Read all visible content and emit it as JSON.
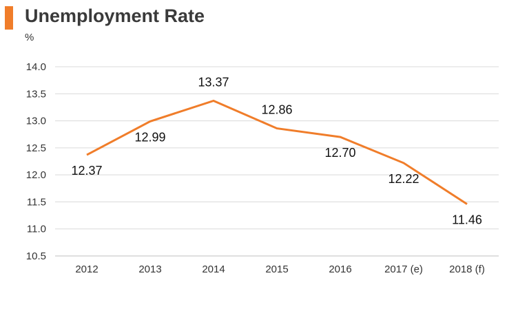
{
  "header": {
    "title": "Unemployment Rate",
    "unit": "%",
    "accent_color": "#f07d2a"
  },
  "chart_data": {
    "type": "line",
    "title": "Unemployment Rate",
    "ylabel": "%",
    "xlabel": "",
    "categories": [
      "2012",
      "2013",
      "2014",
      "2015",
      "2016",
      "2017 (e)",
      "2018 (f)"
    ],
    "series": [
      {
        "values": [
          12.37,
          12.99,
          13.37,
          12.86,
          12.7,
          12.22,
          11.46
        ],
        "labels": [
          "12.37",
          "12.99",
          "13.37",
          "12.86",
          "12.70",
          "12.22",
          "11.46"
        ],
        "color": "#f07d2a"
      }
    ],
    "ylim": [
      10.5,
      14.0
    ],
    "yticks": [
      "14.0",
      "13.5",
      "13.0",
      "12.5",
      "12.0",
      "11.5",
      "11.0",
      "10.5"
    ],
    "grid": true,
    "grid_color": "#d9d9d9",
    "legend": false
  }
}
